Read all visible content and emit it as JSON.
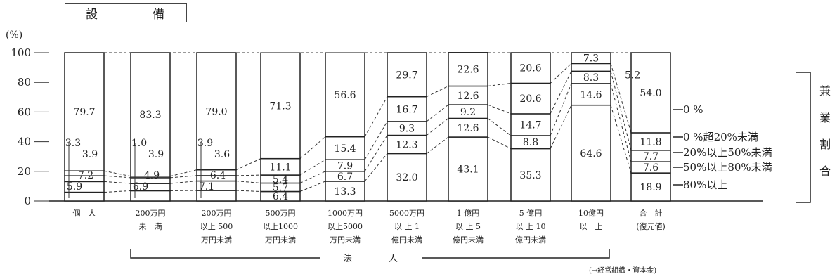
{
  "chart_data": {
    "type": "bar",
    "stacked": true,
    "percent": true,
    "title": "設　　　　備",
    "ylabel": "(%)",
    "ylim": [
      0,
      100
    ],
    "yticks": [
      "0",
      "20",
      "40",
      "60",
      "80",
      "100"
    ],
    "categories": [
      [
        "個　人"
      ],
      [
        "200万円",
        "未　満"
      ],
      [
        "200万円",
        "以上 500",
        "万円未満"
      ],
      [
        "500万円",
        "以上1000",
        "万円未満"
      ],
      [
        "1000万円",
        "以上5000",
        "万円未満"
      ],
      [
        "5000万円",
        "以 上 1",
        "億円未満"
      ],
      [
        "1 億円",
        "以 上 5",
        "億円未満"
      ],
      [
        "5 億円",
        "以 上 10",
        "億円未満"
      ],
      [
        "10億円",
        "以　上"
      ],
      [
        "合　計",
        "(復元値)"
      ]
    ],
    "series": [
      {
        "name": "80%以上",
        "values": [
          5.9,
          6.9,
          7.1,
          6.4,
          13.3,
          32.0,
          43.1,
          35.3,
          64.6,
          18.9
        ]
      },
      {
        "name": "50%以上80%未満",
        "values": [
          7.2,
          4.9,
          6.4,
          5.7,
          6.7,
          12.3,
          12.6,
          8.8,
          14.6,
          7.6
        ]
      },
      {
        "name": "20%以上50%未満",
        "values": [
          3.9,
          3.9,
          3.6,
          5.4,
          7.9,
          9.3,
          9.2,
          14.7,
          8.3,
          7.7
        ]
      },
      {
        "name": "0%超20%未満",
        "values": [
          3.3,
          1.0,
          3.9,
          11.1,
          15.4,
          16.7,
          12.6,
          20.6,
          5.2,
          11.8
        ]
      },
      {
        "name": "0%",
        "values": [
          79.7,
          83.3,
          79.0,
          71.3,
          56.6,
          29.7,
          22.6,
          20.6,
          7.3,
          54.0
        ]
      }
    ],
    "legend_labels": [
      "0 %",
      "0 %超20%未満",
      "20%以上50%未満",
      "50%以上80%未満",
      "80%以上"
    ],
    "right_bracket_label": [
      "兼",
      "業",
      "割",
      "合"
    ],
    "bottom_bracket_label": "法　　　　人",
    "footnote": "(→経営組織・資本金)"
  }
}
